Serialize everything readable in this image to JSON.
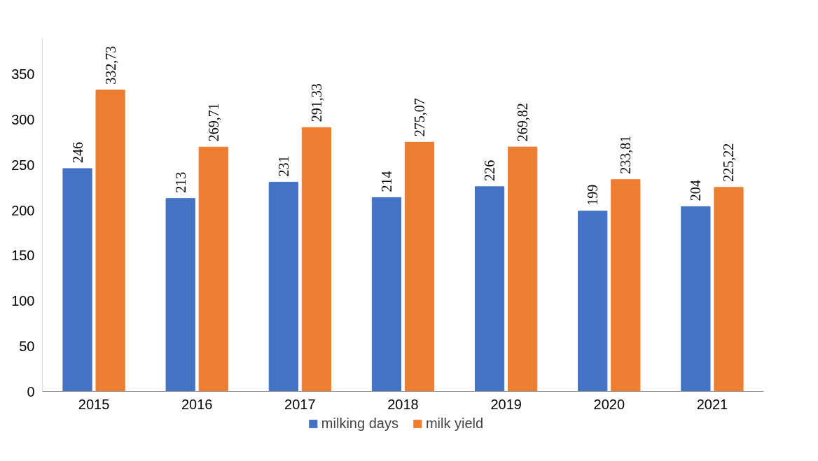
{
  "chart_data": {
    "type": "bar",
    "categories": [
      "2015",
      "2016",
      "2017",
      "2018",
      "2019",
      "2020",
      "2021"
    ],
    "series": [
      {
        "name": "milking days",
        "color": "#4472c4",
        "values": [
          246,
          213,
          231,
          214,
          226,
          199,
          204
        ],
        "value_labels": [
          "246",
          "213",
          "231",
          "214",
          "226",
          "199",
          "204"
        ]
      },
      {
        "name": "milk yield",
        "color": "#ed7d31",
        "values": [
          332.73,
          269.71,
          291.33,
          275.07,
          269.82,
          233.81,
          225.22
        ],
        "value_labels": [
          "332,73",
          "269,71",
          "291,33",
          "275,07",
          "269,82",
          "233,81",
          "225,22"
        ]
      }
    ],
    "ylim": [
      0,
      390
    ],
    "yticks": [
      0,
      50,
      100,
      150,
      200,
      250,
      300,
      350
    ],
    "grid": false,
    "legend": "bottom"
  }
}
